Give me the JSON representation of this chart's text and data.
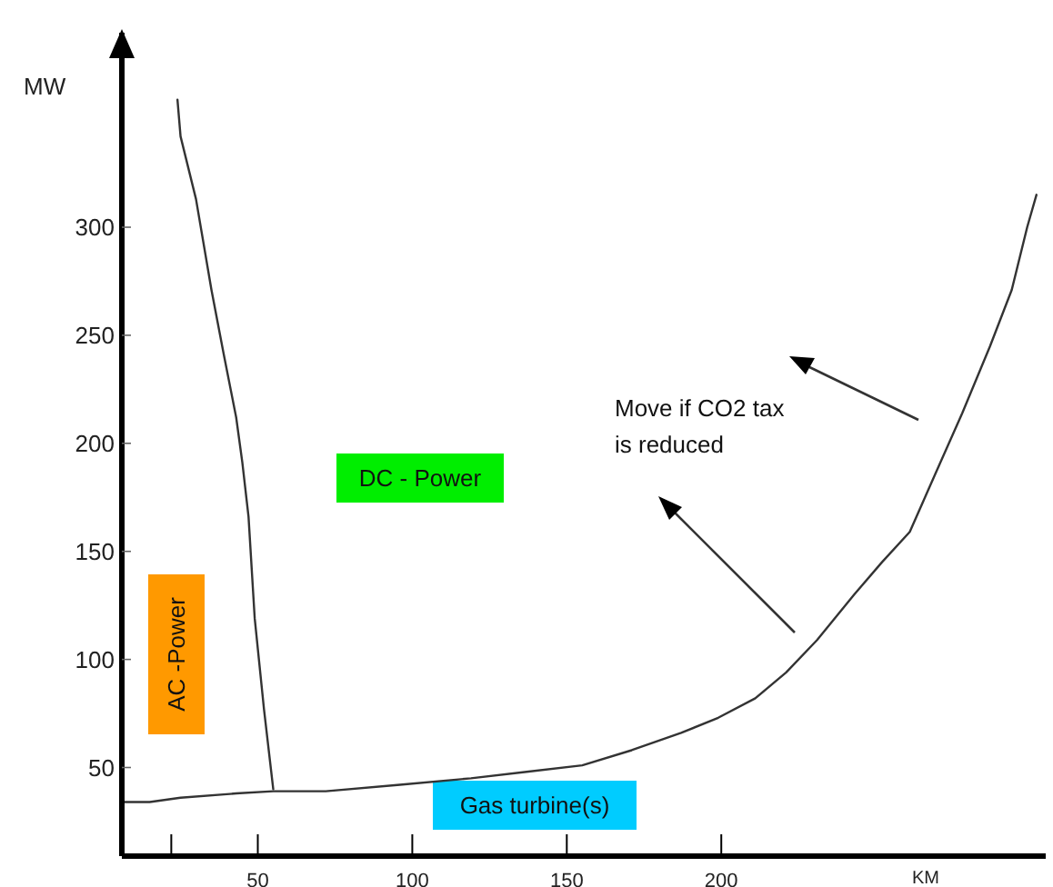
{
  "chart_data": {
    "type": "line",
    "xlabel": "KM",
    "ylabel": "MW",
    "xlim": [
      6,
      305
    ],
    "ylim": [
      9,
      390
    ],
    "xticks": [
      {
        "value": 22,
        "label": null
      },
      50,
      100,
      150,
      200
    ],
    "yticks": [
      50,
      100,
      150,
      200,
      250,
      300
    ],
    "grid": false,
    "marker": "none",
    "line_style": "solid",
    "series": [
      {
        "color": "#333333",
        "x": [
          24,
          25,
          30,
          35,
          39,
          43,
          45,
          47,
          49,
          52,
          55
        ],
        "values": [
          359,
          342,
          313,
          271,
          241,
          212,
          191,
          166,
          119,
          77,
          40
        ]
      },
      {
        "color": "#333333",
        "x": [
          7,
          15,
          25,
          43,
          55,
          72,
          96,
          119,
          137,
          155,
          171,
          187,
          199,
          211,
          221,
          231,
          243,
          252,
          261,
          269,
          278,
          287,
          294,
          299,
          302
        ],
        "values": [
          34,
          34,
          36,
          38,
          39,
          39,
          42,
          45,
          48,
          51,
          58,
          66,
          73,
          82,
          94,
          109,
          130,
          145,
          159,
          185,
          214,
          245,
          271,
          300,
          315
        ]
      }
    ],
    "annotations": [
      "AC -Power",
      "DC - Power",
      "Gas turbine(s)",
      "Move if CO2 tax is reduced"
    ]
  }
}
